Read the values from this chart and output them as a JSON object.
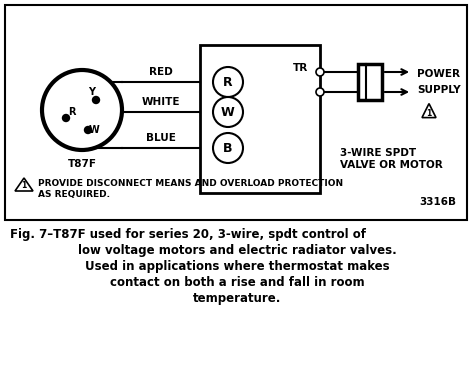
{
  "bg_color": "#ffffff",
  "border_color": "#000000",
  "title_line1": "Fig. 7–T87F used for series 20, 3-wire, spdt control of",
  "title_line2": "low voltage motors and electric radiator valves.",
  "title_line3": "Used in applications where thermostat makes",
  "title_line4": "contact on both a rise and fall in room",
  "title_line5": "temperature.",
  "diagram_note1": "PROVIDE DISCONNECT MEANS AND OVERLOAD PROTECTION",
  "diagram_note2": "AS REQUIRED.",
  "diagram_code": "3316B",
  "valve_label1": "3-WIRE SPDT",
  "valve_label2": "VALVE OR MOTOR",
  "thermostat_label": "T87F",
  "wire_labels": [
    "RED",
    "WHITE",
    "BLUE"
  ],
  "terminal_letters": [
    "R",
    "W",
    "B"
  ],
  "terminal_tr": "TR",
  "power_label1": "POWER",
  "power_label2": "SUPPLY",
  "circle_terminals": [
    "Y",
    "R",
    "W"
  ]
}
